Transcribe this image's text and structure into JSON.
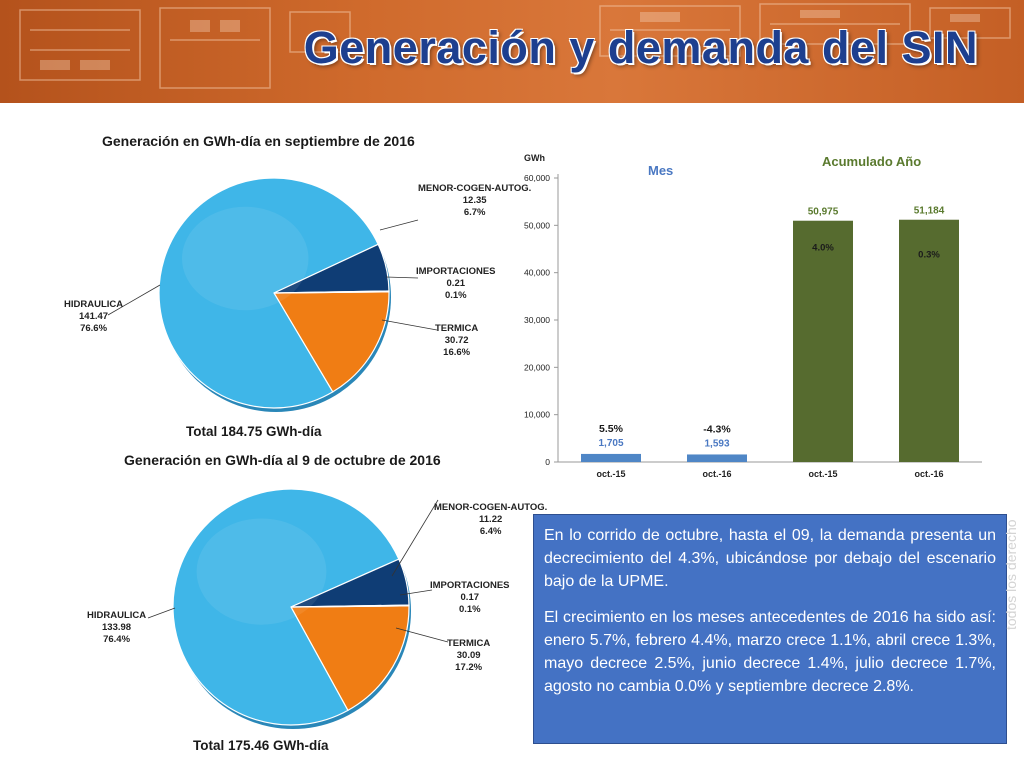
{
  "header": {
    "title": "Generación y demanda del SIN",
    "background_color": "#c96328",
    "title_color": "#1d3f8f"
  },
  "chart_data": [
    {
      "type": "pie",
      "title": "Generación en GWh-día en septiembre de 2016",
      "total_label": "Total 184.75 GWh-día",
      "slices": [
        {
          "name": "HIDRAULICA",
          "value": 141.47,
          "percent_label": "76.6%",
          "value_label": "141.47",
          "color": "#3fb6e8"
        },
        {
          "name": "MENOR-COGEN-AUTOG.",
          "value": 12.35,
          "percent_label": "6.7%",
          "value_label": "12.35",
          "color": "#0f3d75"
        },
        {
          "name": "IMPORTACIONES",
          "value": 0.21,
          "percent_label": "0.1%",
          "value_label": "0.21",
          "color": "#1a6fb0"
        },
        {
          "name": "TERMICA",
          "value": 30.72,
          "percent_label": "16.6%",
          "value_label": "30.72",
          "color": "#f07d14"
        }
      ]
    },
    {
      "type": "pie",
      "title": "Generación en GWh-día al 9 de octubre de 2016",
      "total_label": "Total 175.46 GWh-día",
      "slices": [
        {
          "name": "HIDRAULICA",
          "value": 133.98,
          "percent_label": "76.4%",
          "value_label": "133.98",
          "color": "#3fb6e8"
        },
        {
          "name": "MENOR-COGEN-AUTOG.",
          "value": 11.22,
          "percent_label": "6.4%",
          "value_label": "11.22",
          "color": "#0f3d75"
        },
        {
          "name": "IMPORTACIONES",
          "value": 0.17,
          "percent_label": "0.1%",
          "value_label": "0.17",
          "color": "#1a6fb0"
        },
        {
          "name": "TERMICA",
          "value": 30.09,
          "percent_label": "17.2%",
          "value_label": "30.09",
          "color": "#f07d14"
        }
      ]
    },
    {
      "type": "bar",
      "ylabel": "GWh",
      "ylim": [
        0,
        60000
      ],
      "yticks": [
        "0",
        "10,000",
        "20,000",
        "30,000",
        "40,000",
        "50,000",
        "60,000"
      ],
      "group_labels": [
        "Mes",
        "Acumulado Año"
      ],
      "categories": [
        "oct.-15",
        "oct.-16",
        "oct.-15",
        "oct.-16"
      ],
      "values": [
        1705,
        1593,
        50975,
        51184
      ],
      "value_labels": [
        "1,705",
        "1,593",
        "50,975",
        "51,184"
      ],
      "growth_labels": [
        "5.5%",
        "-4.3%",
        "4.0%",
        "0.3%"
      ],
      "colors": [
        "#4f86c6",
        "#4f86c6",
        "#566b2f",
        "#566b2f"
      ],
      "grid": false
    }
  ],
  "note": {
    "paragraph1": "En lo corrido de octubre, hasta el 09, la demanda presenta un decrecimiento del 4.3%,  ubicándose por debajo del escenario bajo de la UPME.",
    "paragraph2": "El crecimiento en los meses antecedentes de 2016 ha sido así: enero 5.7%, febrero 4.4%, marzo crece 1.1%, abril crece 1.3%, mayo decrece 2.5%, junio decrece 1.4%, julio decrece 1.7%, agosto no cambia 0.0% y septiembre decrece 2.8%."
  },
  "watermark": "todos los derecho"
}
